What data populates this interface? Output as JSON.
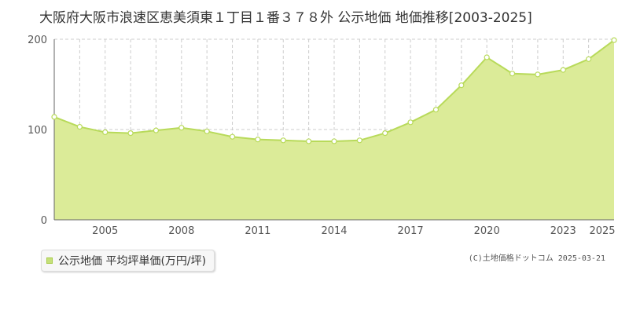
{
  "title": "大阪府大阪市浪速区恵美須東１丁目１番３７８外 公示地価 地価推移[2003-2025]",
  "legend_label": "公示地価 平均坪単価(万円/坪)",
  "credit": "(C)土地価格ドットコム 2025-03-21",
  "colors": {
    "area_fill": "#dbeb98",
    "line": "#b8da5a",
    "point_fill": "#ffffff",
    "grid": "#cccccc",
    "axis": "#666666"
  },
  "chart_data": {
    "type": "area",
    "x": [
      2003,
      2004,
      2005,
      2006,
      2007,
      2008,
      2009,
      2010,
      2011,
      2012,
      2013,
      2014,
      2015,
      2016,
      2017,
      2018,
      2019,
      2020,
      2021,
      2022,
      2023,
      2024,
      2025
    ],
    "series": [
      {
        "name": "公示地価 平均坪単価(万円/坪)",
        "values": [
          114,
          103,
          97,
          96,
          99,
          102,
          98,
          92,
          89,
          88,
          87,
          87,
          88,
          96,
          108,
          122,
          149,
          180,
          162,
          161,
          166,
          178,
          199
        ]
      }
    ],
    "xlim": [
      2003,
      2025
    ],
    "ylim": [
      0,
      200
    ],
    "y_ticks": [
      "0",
      "100",
      "200"
    ],
    "x_ticks": [
      "2005",
      "2008",
      "2011",
      "2014",
      "2017",
      "2020",
      "2023",
      "2025"
    ],
    "grid": true,
    "legend_position": "bottom-left"
  }
}
